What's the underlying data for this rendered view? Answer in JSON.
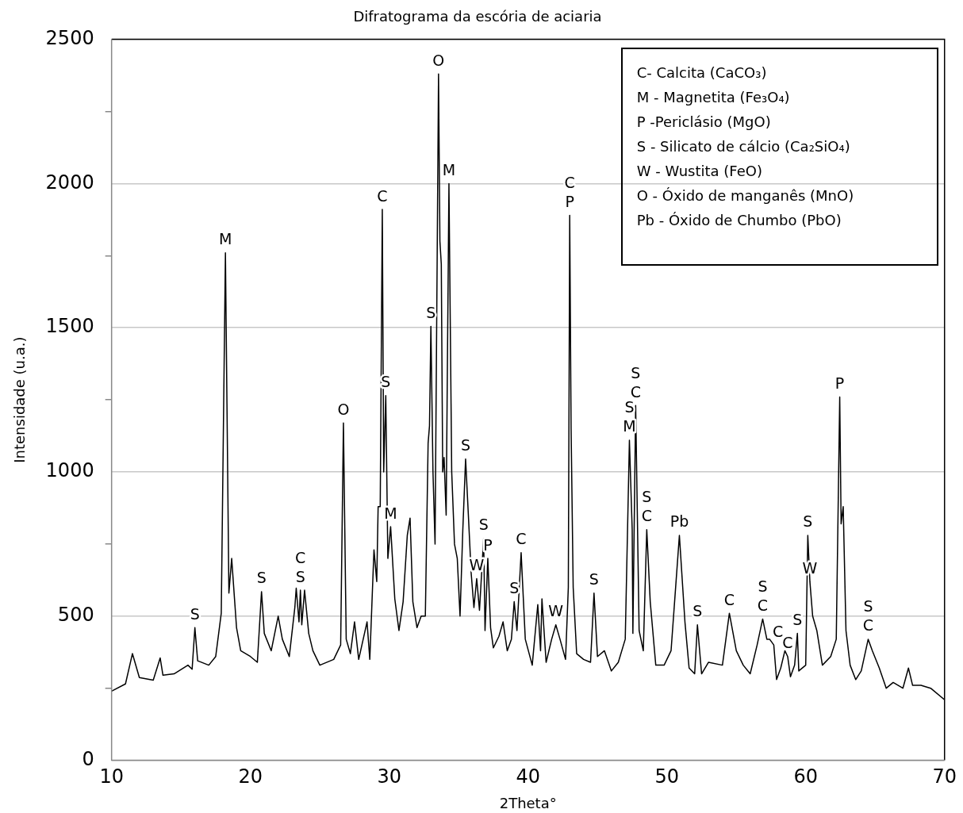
{
  "chart_data": {
    "type": "line",
    "title": "Difratograma da escória de aciaria",
    "xlabel": "2Theta°",
    "ylabel": "Intensidade (u.a.)",
    "xlim": [
      10,
      70
    ],
    "xticks": [
      10,
      20,
      30,
      40,
      50,
      60,
      70
    ],
    "ylim": [
      0,
      2500
    ],
    "yticks": [
      0,
      {
        "value": 250,
        "label": null
      },
      500,
      {
        "value": 750,
        "label": null
      },
      1000,
      {
        "value": 1250,
        "label": null
      },
      1500,
      {
        "value": 1750,
        "label": null
      },
      2000,
      {
        "value": 2250,
        "label": null
      },
      2500
    ],
    "grid": "y",
    "legend": false,
    "marker": "none",
    "line_style": "solid",
    "x": [
      10,
      11,
      11.5,
      12,
      13,
      13.5,
      13.7,
      14.5,
      15.5,
      15.8,
      16,
      16.2,
      17,
      17.5,
      17.9,
      18.2,
      18.45,
      18.65,
      19,
      19.3,
      20,
      20.5,
      20.8,
      21,
      21.5,
      22,
      22.3,
      22.8,
      23.2,
      23.3,
      23.5,
      23.6,
      23.7,
      23.9,
      24.2,
      24.5,
      25,
      26,
      26.5,
      26.7,
      26.9,
      27.2,
      27.5,
      27.8,
      28.4,
      28.6,
      28.9,
      29.1,
      29.2,
      29.35,
      29.5,
      29.6,
      29.75,
      29.9,
      30.1,
      30.4,
      30.7,
      31,
      31.3,
      31.5,
      31.7,
      32,
      32.3,
      32.6,
      32.8,
      32.9,
      33,
      33.15,
      33.3,
      33.55,
      33.65,
      33.75,
      33.85,
      33.95,
      34.1,
      34.3,
      34.5,
      34.7,
      34.9,
      35.1,
      35.3,
      35.5,
      35.7,
      35.9,
      36.1,
      36.3,
      36.5,
      36.8,
      36.9,
      37.1,
      37.3,
      37.5,
      37.9,
      38.2,
      38.5,
      38.8,
      39,
      39.2,
      39.5,
      39.8,
      40.3,
      40.7,
      40.9,
      41,
      41.3,
      41.7,
      42,
      42.3,
      42.7,
      42.9,
      43,
      43.1,
      43.25,
      43.5,
      44,
      44.5,
      44.75,
      45,
      45.5,
      46,
      46.5,
      47,
      47.3,
      47.5,
      47.55,
      47.75,
      48,
      48.3,
      48.55,
      48.8,
      49.2,
      49.8,
      50.3,
      50.9,
      51.3,
      51.6,
      52,
      52.2,
      52.5,
      53,
      54,
      54.5,
      55,
      55.5,
      56,
      56.5,
      56.9,
      57.2,
      57.4,
      57.7,
      57.9,
      58.2,
      58.5,
      58.7,
      58.9,
      59.2,
      59.4,
      59.5,
      60,
      60.15,
      60.3,
      60.5,
      60.8,
      61.2,
      61.8,
      62.2,
      62.45,
      62.55,
      62.7,
      62.9,
      63.2,
      63.6,
      64,
      64.5,
      64.8,
      65.3,
      65.8,
      66.3,
      67,
      67.4,
      67.7,
      68.3,
      69,
      70
    ],
    "series": [
      {
        "color": "#000000",
        "values": [
          240,
          265,
          370,
          287,
          278,
          355,
          295,
          300,
          330,
          316,
          460,
          345,
          330,
          360,
          510,
          1760,
          580,
          700,
          460,
          380,
          360,
          340,
          585,
          440,
          380,
          500,
          420,
          360,
          530,
          597,
          480,
          590,
          470,
          590,
          440,
          380,
          330,
          350,
          400,
          1170,
          420,
          370,
          480,
          350,
          480,
          350,
          730,
          620,
          880,
          880,
          1910,
          1000,
          1265,
          700,
          810,
          560,
          450,
          550,
          780,
          840,
          550,
          460,
          500,
          500,
          1100,
          1160,
          1505,
          1000,
          750,
          2380,
          1800,
          1720,
          1000,
          1050,
          850,
          2000,
          1000,
          750,
          700,
          500,
          800,
          1045,
          850,
          650,
          530,
          630,
          520,
          770,
          450,
          700,
          460,
          390,
          430,
          480,
          380,
          420,
          550,
          450,
          720,
          420,
          330,
          540,
          380,
          560,
          340,
          420,
          470,
          420,
          350,
          600,
          1890,
          1150,
          600,
          370,
          350,
          340,
          580,
          360,
          380,
          310,
          340,
          420,
          1110,
          800,
          440,
          1230,
          450,
          380,
          800,
          550,
          330,
          330,
          380,
          780,
          480,
          320,
          300,
          470,
          300,
          340,
          330,
          510,
          380,
          330,
          300,
          400,
          490,
          420,
          420,
          400,
          280,
          320,
          380,
          360,
          290,
          330,
          440,
          310,
          330,
          780,
          620,
          500,
          450,
          330,
          360,
          420,
          1260,
          820,
          880,
          450,
          330,
          280,
          310,
          420,
          380,
          320,
          250,
          270,
          250,
          320,
          260,
          260,
          250,
          210
        ]
      }
    ],
    "annotations": [
      "C- Calcita (CaCO₃)",
      "M - Magnetita (Fe₃O₄)",
      "P -Periclásio (MgO)",
      "S - Silicato de cálcio (Ca₂SiO₄)",
      "W - Wustita (FeO)",
      "O - Óxido de manganês (MnO)",
      "Pb - Óxido de Chumbo (PbO)",
      {
        "text": "S",
        "x": 16,
        "y": 460
      },
      {
        "text": "M",
        "x": 18.2,
        "y": 1760
      },
      {
        "text": "S",
        "x": 20.8,
        "y": 585
      },
      {
        "text": "S",
        "x": 23.6,
        "y": 590
      },
      {
        "text": "C",
        "x": 23.6,
        "y": 590
      },
      {
        "text": "O",
        "x": 26.7,
        "y": 1170
      },
      {
        "text": "C",
        "x": 29.5,
        "y": 1910
      },
      {
        "text": "S",
        "x": 29.75,
        "y": 1265
      },
      {
        "text": "M",
        "x": 30.1,
        "y": 810
      },
      {
        "text": "S",
        "x": 33,
        "y": 1505
      },
      {
        "text": "O",
        "x": 33.55,
        "y": 2380
      },
      {
        "text": "M",
        "x": 34.3,
        "y": 2000
      },
      {
        "text": "S",
        "x": 35.5,
        "y": 1045
      },
      {
        "text": "W",
        "x": 36.3,
        "y": 630
      },
      {
        "text": "S",
        "x": 36.8,
        "y": 770
      },
      {
        "text": "P",
        "x": 37.1,
        "y": 700
      },
      {
        "text": "S",
        "x": 39,
        "y": 550
      },
      {
        "text": "C",
        "x": 39.5,
        "y": 720
      },
      {
        "text": "W",
        "x": 42,
        "y": 470
      },
      {
        "text": "P",
        "x": 43,
        "y": 1890
      },
      {
        "text": "C",
        "x": 43,
        "y": 1890
      },
      {
        "text": "S",
        "x": 44.75,
        "y": 580
      },
      {
        "text": "M",
        "x": 47.3,
        "y": 1110
      },
      {
        "text": "S",
        "x": 47.3,
        "y": 1110
      },
      {
        "text": "C",
        "x": 47.75,
        "y": 1230
      },
      {
        "text": "S",
        "x": 47.75,
        "y": 1230
      },
      {
        "text": "C",
        "x": 48.55,
        "y": 800
      },
      {
        "text": "S",
        "x": 48.55,
        "y": 800
      },
      {
        "text": "Pb",
        "x": 50.9,
        "y": 780
      },
      {
        "text": "S",
        "x": 52.2,
        "y": 470
      },
      {
        "text": "C",
        "x": 54.5,
        "y": 510
      },
      {
        "text": "C",
        "x": 56.9,
        "y": 490
      },
      {
        "text": "S",
        "x": 56.9,
        "y": 490
      },
      {
        "text": "C",
        "x": 58,
        "y": 400
      },
      {
        "text": "C",
        "x": 58.7,
        "y": 360
      },
      {
        "text": "S",
        "x": 59.4,
        "y": 440
      },
      {
        "text": "S",
        "x": 60.15,
        "y": 780
      },
      {
        "text": "W",
        "x": 60.3,
        "y": 620
      },
      {
        "text": "P",
        "x": 62.45,
        "y": 1260
      },
      {
        "text": "C",
        "x": 64.5,
        "y": 420
      },
      {
        "text": "S",
        "x": 64.5,
        "y": 420
      }
    ]
  }
}
